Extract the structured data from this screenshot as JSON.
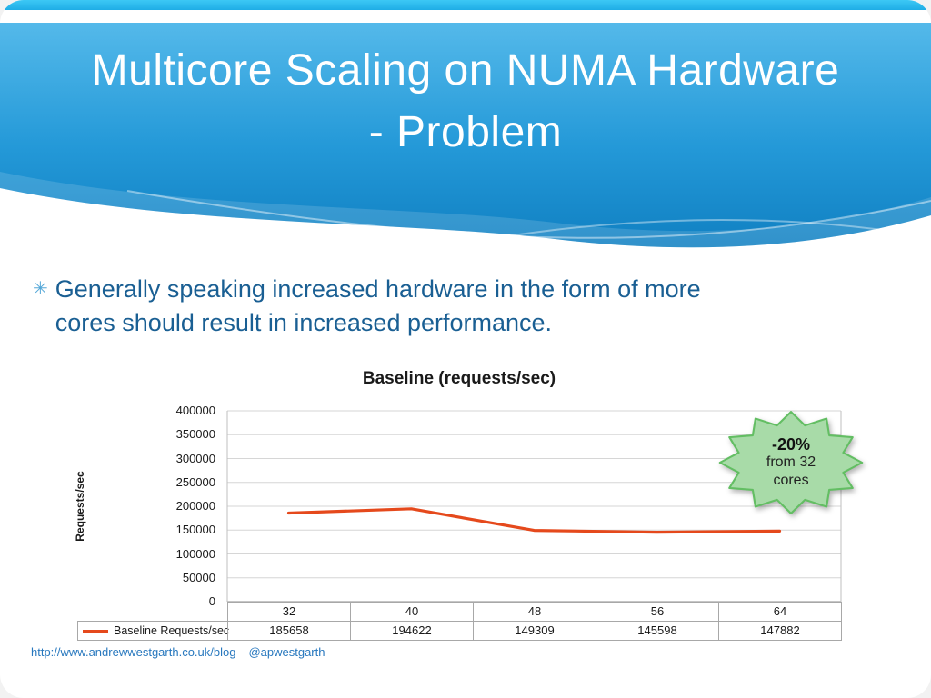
{
  "slide": {
    "title_line1": "Multicore Scaling on NUMA Hardware",
    "title_line2": "- Problem",
    "bullet": {
      "marker": "✳",
      "text": "Generally speaking increased hardware in the form of more cores should result in increased performance."
    },
    "callout": {
      "line1": "-20%",
      "line2": "from 32",
      "line3": "cores",
      "fill": "#a8dba8",
      "border": "#63be63"
    },
    "footer": {
      "url": "http://www.andrewwestgarth.co.uk/blog",
      "handle": "@apwestgarth"
    }
  },
  "chart_data": {
    "type": "line",
    "title": "Baseline (requests/sec)",
    "ylabel": "Requests/sec",
    "categories": [
      "32",
      "40",
      "48",
      "56",
      "64"
    ],
    "series": [
      {
        "name": "Baseline Requests/sec",
        "values": [
          185658,
          194622,
          149309,
          145598,
          147882
        ],
        "color": "#e5491c"
      }
    ],
    "ylim": [
      0,
      400000
    ],
    "y_ticks": [
      "400000",
      "350000",
      "300000",
      "250000",
      "200000",
      "150000",
      "100000",
      "50000",
      "0"
    ],
    "grid": true,
    "legend_position": "bottom-table"
  }
}
